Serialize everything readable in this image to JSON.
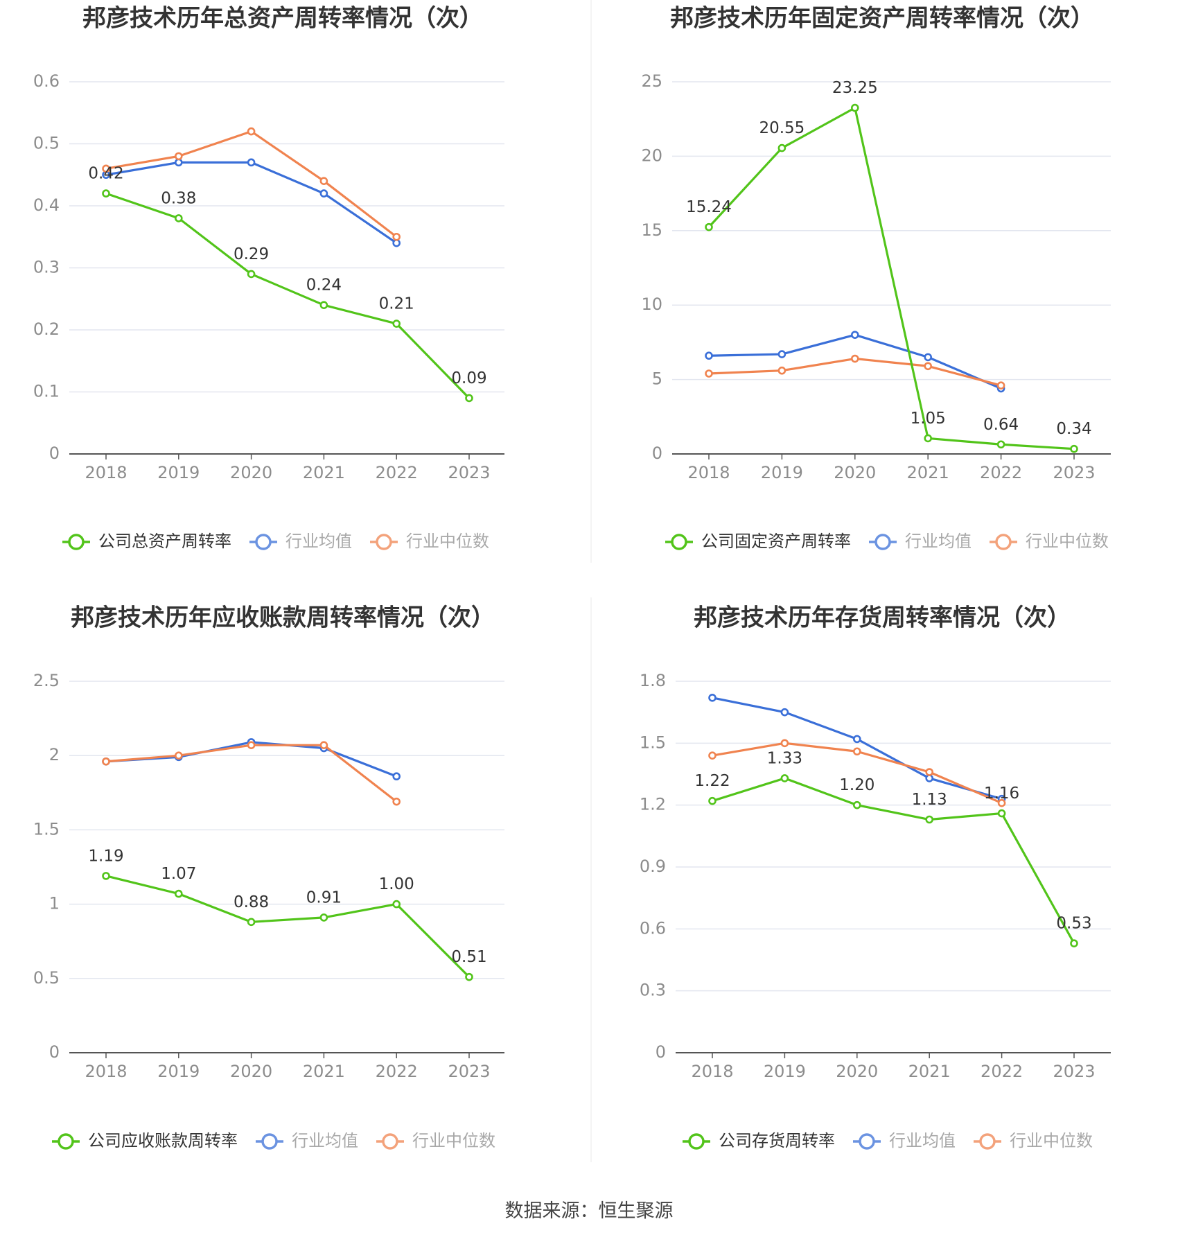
{
  "colors": {
    "company": "#52c41a",
    "avg": "#3a6fd8",
    "median": "#f0834f",
    "grid": "#e3e6ef",
    "axis": "#555555",
    "tick": "#8c8c8c",
    "title": "#333333",
    "divider": "#e8e8e8"
  },
  "source_text": "数据来源：恒生聚源",
  "chart_data": [
    {
      "type": "line",
      "title": "邦彦技术历年总资产周转率情况（次）",
      "categories": [
        "2018",
        "2019",
        "2020",
        "2021",
        "2022",
        "2023"
      ],
      "ylim": [
        0,
        0.6
      ],
      "yticks": [
        0,
        0.1,
        0.2,
        0.3,
        0.4,
        0.5,
        0.6
      ],
      "ytick_labels": [
        "0",
        "0.1",
        "0.2",
        "0.3",
        "0.4",
        "0.5",
        "0.6"
      ],
      "series": [
        {
          "name": "公司总资产周转率",
          "role": "company",
          "values": [
            0.42,
            0.38,
            0.29,
            0.24,
            0.21,
            0.09
          ],
          "labels": [
            "0.42",
            "0.38",
            "0.29",
            "0.24",
            "0.21",
            "0.09"
          ]
        },
        {
          "name": "行业均值",
          "role": "avg",
          "values": [
            0.45,
            0.47,
            0.47,
            0.42,
            0.34,
            null
          ]
        },
        {
          "name": "行业中位数",
          "role": "median",
          "values": [
            0.46,
            0.48,
            0.52,
            0.44,
            0.35,
            null
          ]
        }
      ]
    },
    {
      "type": "line",
      "title": "邦彦技术历年固定资产周转率情况（次）",
      "categories": [
        "2018",
        "2019",
        "2020",
        "2021",
        "2022",
        "2023"
      ],
      "ylim": [
        0,
        25
      ],
      "yticks": [
        0,
        5,
        10,
        15,
        20,
        25
      ],
      "ytick_labels": [
        "0",
        "5",
        "10",
        "15",
        "20",
        "25"
      ],
      "series": [
        {
          "name": "公司固定资产周转率",
          "role": "company",
          "values": [
            15.24,
            20.55,
            23.25,
            1.05,
            0.64,
            0.34
          ],
          "labels": [
            "15.24",
            "20.55",
            "23.25",
            "1.05",
            "0.64",
            "0.34"
          ]
        },
        {
          "name": "行业均值",
          "role": "avg",
          "values": [
            6.6,
            6.7,
            8.0,
            6.5,
            4.4,
            null
          ]
        },
        {
          "name": "行业中位数",
          "role": "median",
          "values": [
            5.4,
            5.6,
            6.4,
            5.9,
            4.6,
            null
          ]
        }
      ]
    },
    {
      "type": "line",
      "title": "邦彦技术历年应收账款周转率情况（次）",
      "categories": [
        "2018",
        "2019",
        "2020",
        "2021",
        "2022",
        "2023"
      ],
      "ylim": [
        0,
        2.5
      ],
      "yticks": [
        0,
        0.5,
        1,
        1.5,
        2,
        2.5
      ],
      "ytick_labels": [
        "0",
        "0.5",
        "1",
        "1.5",
        "2",
        "2.5"
      ],
      "series": [
        {
          "name": "公司应收账款周转率",
          "role": "company",
          "values": [
            1.19,
            1.07,
            0.88,
            0.91,
            1.0,
            0.51
          ],
          "labels": [
            "1.19",
            "1.07",
            "0.88",
            "0.91",
            "1.00",
            "0.51"
          ]
        },
        {
          "name": "行业均值",
          "role": "avg",
          "values": [
            1.96,
            1.99,
            2.09,
            2.05,
            1.86,
            null
          ]
        },
        {
          "name": "行业中位数",
          "role": "median",
          "values": [
            1.96,
            2.0,
            2.07,
            2.07,
            1.69,
            null
          ]
        }
      ]
    },
    {
      "type": "line",
      "title": "邦彦技术历年存货周转率情况（次）",
      "categories": [
        "2018",
        "2019",
        "2020",
        "2021",
        "2022",
        "2023"
      ],
      "ylim": [
        0,
        1.8
      ],
      "yticks": [
        0,
        0.3,
        0.6,
        0.9,
        1.2,
        1.5,
        1.8
      ],
      "ytick_labels": [
        "0",
        "0.3",
        "0.6",
        "0.9",
        "1.2",
        "1.5",
        "1.8"
      ],
      "series": [
        {
          "name": "公司存货周转率",
          "role": "company",
          "values": [
            1.22,
            1.33,
            1.2,
            1.13,
            1.16,
            0.53
          ],
          "labels": [
            "1.22",
            "1.33",
            "1.20",
            "1.13",
            "1.16",
            "0.53"
          ]
        },
        {
          "name": "行业均值",
          "role": "avg",
          "values": [
            1.72,
            1.65,
            1.52,
            1.33,
            1.23,
            null
          ]
        },
        {
          "name": "行业中位数",
          "role": "median",
          "values": [
            1.44,
            1.5,
            1.46,
            1.36,
            1.21,
            null
          ]
        }
      ]
    }
  ]
}
